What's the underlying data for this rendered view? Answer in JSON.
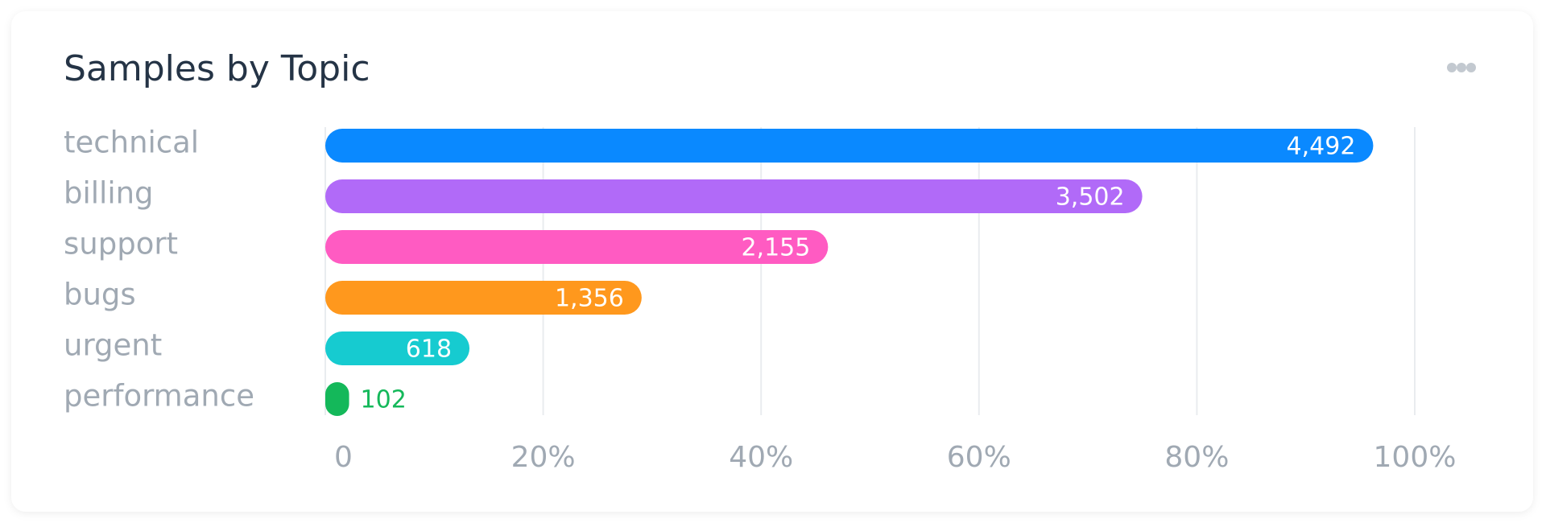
{
  "chart_data": {
    "type": "bar",
    "orientation": "horizontal",
    "title": "Samples by Topic",
    "categories": [
      "technical",
      "billing",
      "support",
      "bugs",
      "urgent",
      "performance"
    ],
    "values": [
      4492,
      3502,
      2155,
      1356,
      618,
      102
    ],
    "value_labels": [
      "4,492",
      "3,502",
      "2,155",
      "1,356",
      "618",
      "102"
    ],
    "colors": [
      "#0a89ff",
      "#b16af8",
      "#ff5bc2",
      "#ff981d",
      "#16cbd0",
      "#14b85a"
    ],
    "xlim": [
      0,
      4670
    ],
    "xticks": [
      0,
      {
        "value": 934,
        "label": "20%"
      },
      {
        "value": 1868,
        "label": "40%"
      },
      {
        "value": 2802,
        "label": "60%"
      },
      {
        "value": 3736,
        "label": "80%"
      },
      {
        "value": 4670,
        "label": "100%"
      }
    ],
    "grid": true
  }
}
